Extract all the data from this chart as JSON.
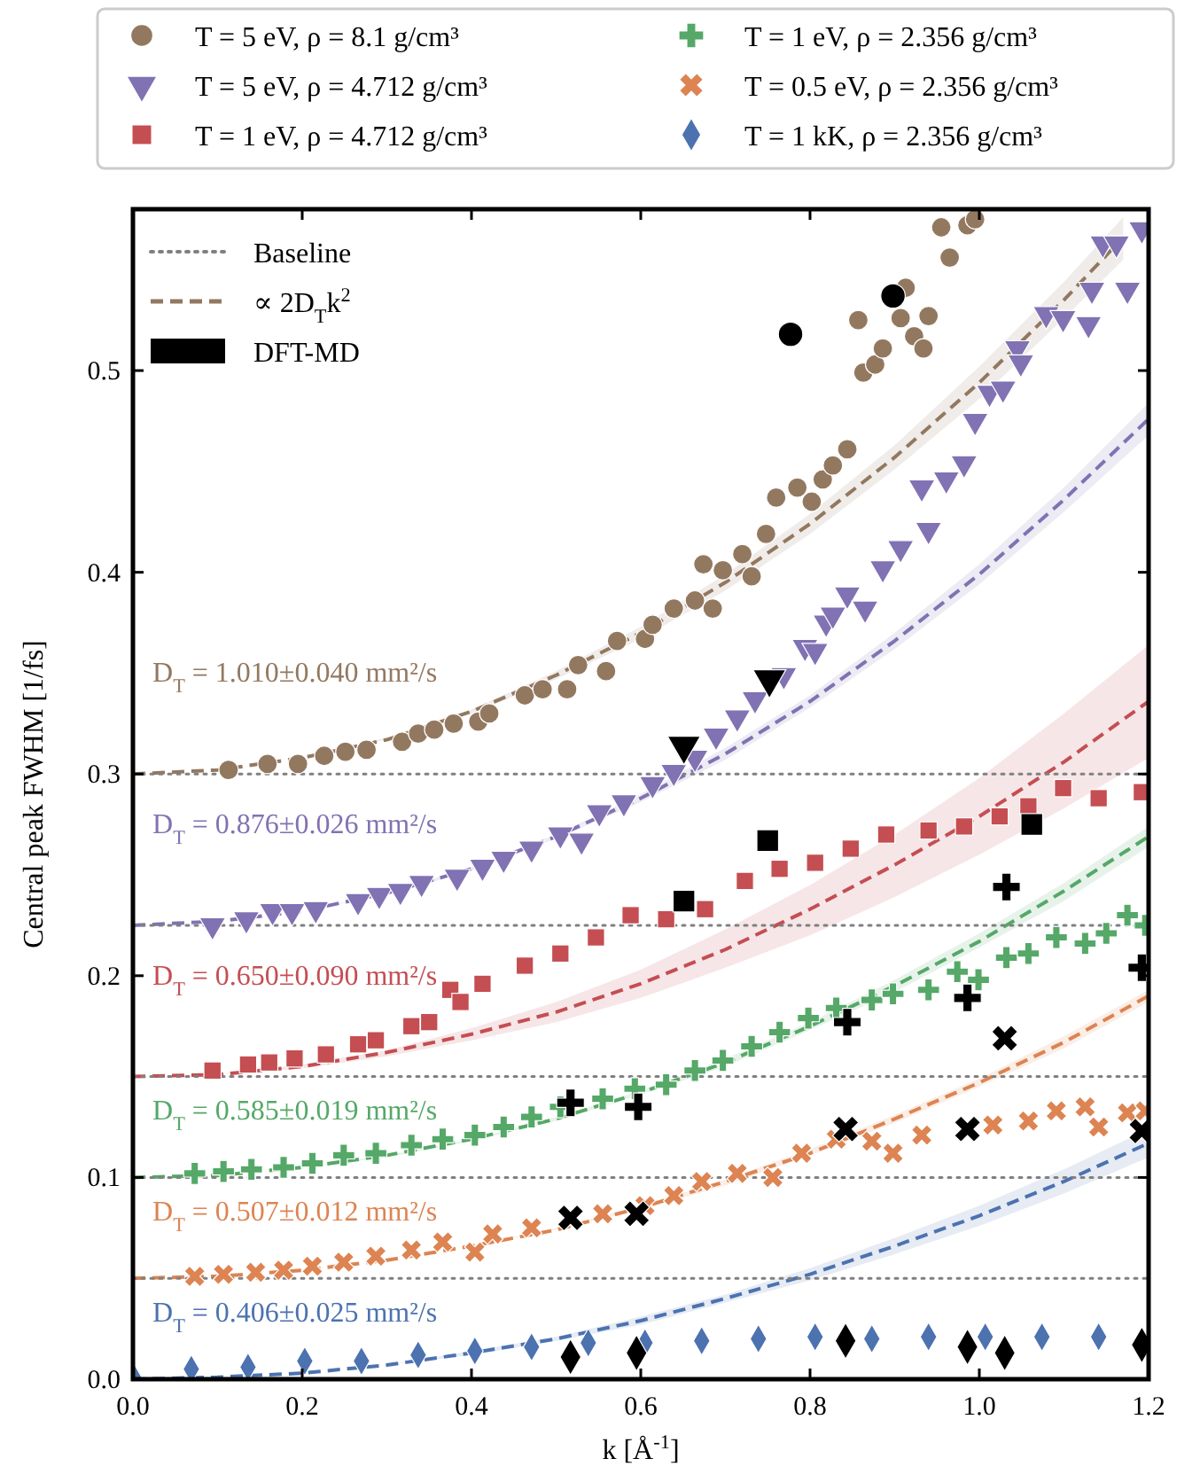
{
  "chart_data": {
    "type": "scatter",
    "xlabel": "k [Å$^{-1}$]",
    "ylabel": "Central peak FWHM [1/fs]",
    "xlim": [
      0,
      1.2
    ],
    "ylim": [
      0,
      0.58
    ],
    "xticks": [
      {
        "value": 0,
        "label": "0.0"
      },
      {
        "value": 0.2,
        "label": "0.2"
      },
      {
        "value": 0.4,
        "label": "0.4"
      },
      {
        "value": 0.6,
        "label": "0.6"
      },
      {
        "value": 0.8,
        "label": "0.8"
      },
      {
        "value": 1.0,
        "label": "1.0"
      },
      {
        "value": 1.2,
        "label": "1.2"
      }
    ],
    "yticks": [
      {
        "value": 0,
        "label": "0.0"
      },
      {
        "value": 0.1,
        "label": "0.1"
      },
      {
        "value": 0.2,
        "label": "0.2"
      },
      {
        "value": 0.3,
        "label": "0.3"
      },
      {
        "value": 0.4,
        "label": "0.4"
      },
      {
        "value": 0.5,
        "label": "0.5"
      }
    ],
    "grid": false,
    "legend": "top",
    "series": [
      {
        "name": "T = 5 eV, ρ = 8.1 g/cm³",
        "marker": "circle",
        "color": "#937860",
        "x": [
          0.113,
          0.159,
          0.195,
          0.226,
          0.251,
          0.276,
          0.318,
          0.337,
          0.356,
          0.379,
          0.408,
          0.421,
          0.463,
          0.484,
          0.513,
          0.526,
          0.559,
          0.572,
          0.605,
          0.614,
          0.639,
          0.664,
          0.674,
          0.685,
          0.697,
          0.72,
          0.731,
          0.748,
          0.76,
          0.785,
          0.802,
          0.815,
          0.827,
          0.844,
          0.857,
          0.863,
          0.877,
          0.886,
          0.907,
          0.913,
          0.923,
          0.934,
          0.94,
          0.955,
          0.965,
          0.986,
          0.995
        ],
        "values": [
          0.302,
          0.305,
          0.305,
          0.309,
          0.311,
          0.312,
          0.316,
          0.32,
          0.322,
          0.325,
          0.326,
          0.33,
          0.339,
          0.342,
          0.342,
          0.354,
          0.351,
          0.366,
          0.367,
          0.374,
          0.382,
          0.386,
          0.404,
          0.382,
          0.401,
          0.409,
          0.398,
          0.419,
          0.437,
          0.442,
          0.435,
          0.446,
          0.453,
          0.461,
          0.525,
          0.499,
          0.503,
          0.511,
          0.526,
          0.541,
          0.517,
          0.511,
          0.527,
          0.571,
          0.556,
          0.572,
          0.575
        ]
      },
      {
        "name": "T = 5 eV, ρ = 4.712 g/cm³",
        "marker": "triangle",
        "color": "#8172b3",
        "x": [
          0.094,
          0.134,
          0.165,
          0.188,
          0.216,
          0.266,
          0.291,
          0.316,
          0.341,
          0.383,
          0.413,
          0.438,
          0.471,
          0.505,
          0.53,
          0.551,
          0.58,
          0.614,
          0.639,
          0.664,
          0.689,
          0.714,
          0.735,
          0.769,
          0.794,
          0.806,
          0.819,
          0.827,
          0.844,
          0.865,
          0.886,
          0.907,
          0.932,
          0.94,
          0.961,
          0.982,
          0.995,
          1.012,
          1.028,
          1.045,
          1.049,
          1.079,
          1.099,
          1.129,
          1.133,
          1.146,
          1.162,
          1.175,
          1.192
        ],
        "values": [
          0.225,
          0.228,
          0.232,
          0.232,
          0.233,
          0.237,
          0.24,
          0.242,
          0.246,
          0.249,
          0.254,
          0.258,
          0.263,
          0.27,
          0.267,
          0.281,
          0.286,
          0.295,
          0.301,
          0.308,
          0.319,
          0.328,
          0.337,
          0.349,
          0.363,
          0.361,
          0.375,
          0.379,
          0.389,
          0.382,
          0.402,
          0.412,
          0.442,
          0.421,
          0.446,
          0.454,
          0.475,
          0.489,
          0.491,
          0.511,
          0.504,
          0.528,
          0.526,
          0.523,
          0.54,
          0.563,
          0.563,
          0.54,
          0.57
        ]
      },
      {
        "name": "T = 1 eV, ρ = 4.712 g/cm³",
        "marker": "square",
        "color": "#c44e52",
        "x": [
          0.094,
          0.136,
          0.161,
          0.191,
          0.228,
          0.266,
          0.287,
          0.329,
          0.35,
          0.375,
          0.387,
          0.413,
          0.463,
          0.505,
          0.547,
          0.588,
          0.63,
          0.676,
          0.723,
          0.764,
          0.806,
          0.848,
          0.89,
          0.94,
          0.982,
          1.024,
          1.058,
          1.099,
          1.141,
          1.192
        ],
        "values": [
          0.153,
          0.156,
          0.157,
          0.159,
          0.161,
          0.166,
          0.168,
          0.175,
          0.177,
          0.193,
          0.187,
          0.196,
          0.205,
          0.211,
          0.219,
          0.23,
          0.228,
          0.233,
          0.247,
          0.253,
          0.256,
          0.263,
          0.27,
          0.272,
          0.274,
          0.279,
          0.284,
          0.293,
          0.288,
          0.291
        ]
      },
      {
        "name": "T = 1 eV, ρ = 2.356 g/cm³",
        "marker": "plus",
        "color": "#55a868",
        "x": [
          0.073,
          0.107,
          0.14,
          0.178,
          0.212,
          0.249,
          0.287,
          0.329,
          0.366,
          0.404,
          0.438,
          0.471,
          0.505,
          0.555,
          0.593,
          0.63,
          0.664,
          0.697,
          0.731,
          0.764,
          0.798,
          0.831,
          0.873,
          0.898,
          0.94,
          0.974,
          0.999,
          1.032,
          1.058,
          1.091,
          1.125,
          1.15,
          1.175,
          1.196
        ],
        "values": [
          0.102,
          0.103,
          0.104,
          0.105,
          0.107,
          0.111,
          0.112,
          0.116,
          0.119,
          0.121,
          0.125,
          0.13,
          0.135,
          0.139,
          0.144,
          0.146,
          0.153,
          0.158,
          0.165,
          0.172,
          0.179,
          0.184,
          0.188,
          0.191,
          0.193,
          0.202,
          0.198,
          0.209,
          0.211,
          0.219,
          0.216,
          0.221,
          0.23,
          0.225
        ]
      },
      {
        "name": "T = 0.5 eV, ρ = 2.356 g/cm³",
        "marker": "cross",
        "color": "#dd8452",
        "x": [
          0.073,
          0.107,
          0.145,
          0.178,
          0.212,
          0.249,
          0.287,
          0.329,
          0.366,
          0.404,
          0.425,
          0.471,
          0.555,
          0.605,
          0.639,
          0.672,
          0.714,
          0.756,
          0.79,
          0.831,
          0.873,
          0.898,
          0.932,
          1.016,
          1.058,
          1.091,
          1.125,
          1.141,
          1.175,
          1.196
        ],
        "values": [
          0.051,
          0.052,
          0.053,
          0.054,
          0.056,
          0.058,
          0.061,
          0.064,
          0.068,
          0.063,
          0.072,
          0.075,
          0.082,
          0.086,
          0.091,
          0.098,
          0.102,
          0.1,
          0.112,
          0.119,
          0.118,
          0.112,
          0.121,
          0.126,
          0.128,
          0.133,
          0.135,
          0.125,
          0.132,
          0.133
        ]
      },
      {
        "name": "T = 1 kK, ρ = 2.356 g/cm³",
        "marker": "diamond",
        "color": "#4c72b0",
        "x": [
          0.002,
          0.069,
          0.136,
          0.203,
          0.27,
          0.337,
          0.404,
          0.471,
          0.538,
          0.605,
          0.672,
          0.739,
          0.806,
          0.873,
          0.94,
          1.007,
          1.074,
          1.141
        ],
        "values": [
          0.0,
          0.005,
          0.006,
          0.009,
          0.009,
          0.012,
          0.014,
          0.016,
          0.018,
          0.018,
          0.019,
          0.02,
          0.021,
          0.02,
          0.021,
          0.021,
          0.021,
          0.021
        ]
      },
      {
        "name": "∝ 2D$_{T}$k$^{2}$",
        "type": "line",
        "marker": "none",
        "line_style": "dashed",
        "color": "#937860",
        "x": [
          0,
          0.1,
          0.2,
          0.3,
          0.4,
          0.5,
          0.6,
          0.7,
          0.8,
          0.9,
          1.0,
          1.1,
          1.17
        ],
        "values": [
          0.3,
          0.302,
          0.308,
          0.317,
          0.331,
          0.349,
          0.37,
          0.395,
          0.424,
          0.457,
          0.494,
          0.535,
          0.566
        ],
        "lower": [
          0.3,
          0.302,
          0.308,
          0.317,
          0.33,
          0.347,
          0.367,
          0.391,
          0.419,
          0.451,
          0.486,
          0.526,
          0.555
        ],
        "upper": [
          0.3,
          0.302,
          0.308,
          0.318,
          0.332,
          0.351,
          0.373,
          0.399,
          0.429,
          0.463,
          0.502,
          0.544,
          0.576
        ]
      },
      {
        "type": "line",
        "marker": "none",
        "line_style": "dashed",
        "color": "#8172b3",
        "x": [
          0,
          0.1,
          0.2,
          0.3,
          0.4,
          0.5,
          0.6,
          0.7,
          0.8,
          0.9,
          1.0,
          1.1,
          1.2
        ],
        "values": [
          0.225,
          0.227,
          0.232,
          0.241,
          0.253,
          0.269,
          0.288,
          0.31,
          0.336,
          0.366,
          0.399,
          0.436,
          0.476
        ],
        "lower": [
          0.225,
          0.227,
          0.232,
          0.24,
          0.252,
          0.268,
          0.286,
          0.307,
          0.333,
          0.362,
          0.394,
          0.43,
          0.468
        ],
        "upper": [
          0.225,
          0.227,
          0.232,
          0.241,
          0.254,
          0.27,
          0.29,
          0.313,
          0.339,
          0.37,
          0.404,
          0.442,
          0.484
        ]
      },
      {
        "type": "line",
        "marker": "none",
        "line_style": "dashed",
        "color": "#c44e52",
        "x": [
          0,
          0.1,
          0.2,
          0.3,
          0.4,
          0.5,
          0.6,
          0.7,
          0.8,
          0.9,
          1.0,
          1.1,
          1.2
        ],
        "values": [
          0.15,
          0.151,
          0.155,
          0.162,
          0.171,
          0.182,
          0.196,
          0.213,
          0.233,
          0.255,
          0.279,
          0.306,
          0.336
        ],
        "lower": [
          0.15,
          0.151,
          0.154,
          0.16,
          0.168,
          0.177,
          0.189,
          0.204,
          0.22,
          0.239,
          0.26,
          0.283,
          0.308
        ],
        "upper": [
          0.15,
          0.151,
          0.156,
          0.163,
          0.174,
          0.187,
          0.203,
          0.223,
          0.245,
          0.27,
          0.298,
          0.33,
          0.364
        ]
      },
      {
        "type": "line",
        "marker": "none",
        "line_style": "dashed",
        "color": "#55a868",
        "x": [
          0,
          0.1,
          0.2,
          0.3,
          0.4,
          0.5,
          0.6,
          0.7,
          0.8,
          0.9,
          1.0,
          1.1,
          1.2
        ],
        "values": [
          0.1,
          0.101,
          0.105,
          0.111,
          0.119,
          0.129,
          0.142,
          0.157,
          0.175,
          0.195,
          0.217,
          0.242,
          0.269
        ],
        "lower": [
          0.1,
          0.101,
          0.105,
          0.11,
          0.118,
          0.128,
          0.141,
          0.155,
          0.173,
          0.192,
          0.214,
          0.237,
          0.264
        ],
        "upper": [
          0.1,
          0.101,
          0.105,
          0.111,
          0.119,
          0.13,
          0.143,
          0.159,
          0.177,
          0.198,
          0.221,
          0.246,
          0.274
        ]
      },
      {
        "type": "line",
        "marker": "none",
        "line_style": "dashed",
        "color": "#dd8452",
        "x": [
          0,
          0.1,
          0.2,
          0.3,
          0.4,
          0.5,
          0.6,
          0.7,
          0.8,
          0.9,
          1.0,
          1.1,
          1.2
        ],
        "values": [
          0.05,
          0.051,
          0.054,
          0.059,
          0.066,
          0.074,
          0.085,
          0.098,
          0.112,
          0.129,
          0.147,
          0.167,
          0.19
        ],
        "lower": [
          0.05,
          0.051,
          0.054,
          0.059,
          0.066,
          0.074,
          0.084,
          0.096,
          0.111,
          0.127,
          0.145,
          0.164,
          0.187
        ],
        "upper": [
          0.05,
          0.051,
          0.054,
          0.059,
          0.066,
          0.075,
          0.086,
          0.099,
          0.114,
          0.131,
          0.149,
          0.17,
          0.193
        ]
      },
      {
        "type": "line",
        "marker": "none",
        "line_style": "dashed",
        "color": "#4c72b0",
        "x": [
          0,
          0.1,
          0.2,
          0.3,
          0.4,
          0.5,
          0.6,
          0.7,
          0.8,
          0.9,
          1.0,
          1.1,
          1.2
        ],
        "values": [
          0,
          0.001,
          0.003,
          0.007,
          0.013,
          0.02,
          0.029,
          0.04,
          0.052,
          0.066,
          0.081,
          0.098,
          0.117
        ],
        "lower": [
          0,
          0.001,
          0.003,
          0.007,
          0.012,
          0.019,
          0.027,
          0.038,
          0.049,
          0.062,
          0.076,
          0.092,
          0.11
        ],
        "upper": [
          0,
          0.001,
          0.003,
          0.007,
          0.014,
          0.021,
          0.031,
          0.042,
          0.055,
          0.07,
          0.086,
          0.104,
          0.124
        ]
      },
      {
        "name": "DFT-MD",
        "type": "scatter",
        "marker": "circle",
        "color": "#000000",
        "x": [
          0.777,
          0.898
        ],
        "values": [
          0.518,
          0.537
        ]
      },
      {
        "type": "scatter",
        "marker": "triangle",
        "color": "#000000",
        "x": [
          0.651,
          0.752
        ],
        "values": [
          0.314,
          0.347
        ]
      },
      {
        "type": "scatter",
        "marker": "square",
        "color": "#000000",
        "x": [
          0.651,
          0.75,
          1.062
        ],
        "values": [
          0.237,
          0.267,
          0.275
        ]
      },
      {
        "type": "scatter",
        "marker": "plus",
        "color": "#000000",
        "x": [
          0.517,
          0.597,
          0.844,
          0.986,
          1.032,
          1.192
        ],
        "values": [
          0.137,
          0.135,
          0.177,
          0.189,
          0.244,
          0.204
        ]
      },
      {
        "type": "scatter",
        "marker": "cross",
        "color": "#000000",
        "x": [
          0.517,
          0.595,
          0.842,
          0.986,
          1.03,
          1.192
        ],
        "values": [
          0.08,
          0.082,
          0.124,
          0.124,
          0.169,
          0.123
        ]
      },
      {
        "type": "scatter",
        "marker": "diamond",
        "color": "#000000",
        "x": [
          0.517,
          0.595,
          0.842,
          0.986,
          1.03,
          1.192
        ],
        "values": [
          0.011,
          0.013,
          0.019,
          0.016,
          0.013,
          0.017
        ]
      }
    ],
    "ref_lines": [
      {
        "axis": "y",
        "value": 0.3,
        "label": "Baseline",
        "color": "#808080",
        "line_style": "dotted"
      },
      {
        "axis": "y",
        "value": 0.225,
        "color": "#808080",
        "line_style": "dotted"
      },
      {
        "axis": "y",
        "value": 0.15,
        "color": "#808080",
        "line_style": "dotted"
      },
      {
        "axis": "y",
        "value": 0.1,
        "color": "#808080",
        "line_style": "dotted"
      },
      {
        "axis": "y",
        "value": 0.05,
        "color": "#808080",
        "line_style": "dotted"
      }
    ],
    "annotations": [
      "D$_{T}$ = 1.010±0.040 mm²/s",
      "D$_{T}$ = 0.876±0.026 mm²/s",
      "D$_{T}$ = 0.650±0.090 mm²/s",
      "D$_{T}$ = 0.585±0.019 mm²/s",
      "D$_{T}$ = 0.507±0.012 mm²/s",
      "D$_{T}$ = 0.406±0.025 mm²/s"
    ]
  }
}
